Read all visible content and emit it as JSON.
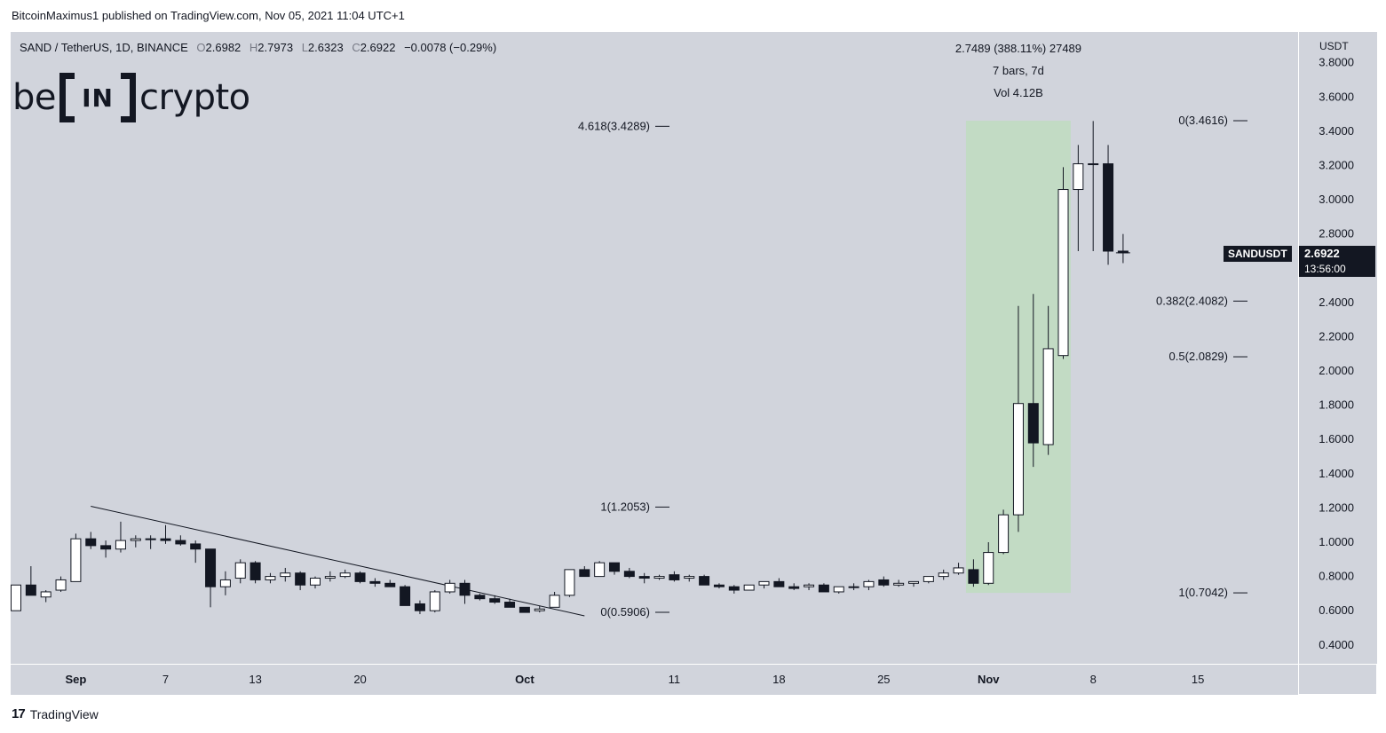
{
  "publisher_line": "BitcoinMaximus1 published on TradingView.com, Nov 05, 2021 11:04 UTC+1",
  "footer": {
    "brand": "TradingView",
    "icon": "tradingview-logo-icon"
  },
  "logo": {
    "left": "be",
    "middle": "IN",
    "right": "crypto"
  },
  "legend": {
    "symbol": "SAND / TetherUS, 1D, BINANCE",
    "o_key": "O",
    "o": "2.6982",
    "h_key": "H",
    "h": "2.7973",
    "l_key": "L",
    "l": "2.6323",
    "c_key": "C",
    "c": "2.6922",
    "change": "−0.0078 (−0.29%)"
  },
  "axis_unit": "USDT",
  "price_tag": {
    "symbol": "SANDUSDT",
    "price": "2.6922",
    "countdown": "13:56:00"
  },
  "measure": {
    "line1": "2.7489 (388.11%) 27489",
    "line2": "7 bars, 7d",
    "line3": "Vol 4.12B"
  },
  "colors": {
    "up": "#ffffff",
    "down": "#131722",
    "background": "#d1d4dc",
    "highlight": "#c2dbc4",
    "line": "#131722"
  },
  "chart_data": {
    "type": "candlestick",
    "y_ticks": [
      "3.8000",
      "3.6000",
      "3.4000",
      "3.2000",
      "3.0000",
      "2.8000",
      "2.4000",
      "2.2000",
      "2.0000",
      "1.8000",
      "1.6000",
      "1.4000",
      "1.2000",
      "1.0000",
      "0.8000",
      "0.6000",
      "0.4000"
    ],
    "ylim": [
      0.29,
      3.98
    ],
    "x_ticks": [
      {
        "label": "Sep",
        "day": 4
      },
      {
        "label": "7",
        "day": 10
      },
      {
        "label": "13",
        "day": 16
      },
      {
        "label": "20",
        "day": 23
      },
      {
        "label": "Oct",
        "day": 34
      },
      {
        "label": "11",
        "day": 44
      },
      {
        "label": "18",
        "day": 51
      },
      {
        "label": "25",
        "day": 58
      },
      {
        "label": "Nov",
        "day": 65
      },
      {
        "label": "8",
        "day": 72
      },
      {
        "label": "15",
        "day": 79
      }
    ],
    "candles": [
      [
        0.6,
        0.75,
        0.6,
        0.75
      ],
      [
        0.75,
        0.86,
        0.69,
        0.69
      ],
      [
        0.68,
        0.72,
        0.65,
        0.71
      ],
      [
        0.72,
        0.8,
        0.71,
        0.78
      ],
      [
        0.77,
        1.05,
        0.77,
        1.02
      ],
      [
        1.02,
        1.06,
        0.96,
        0.98
      ],
      [
        0.98,
        1.01,
        0.91,
        0.96
      ],
      [
        0.96,
        1.12,
        0.94,
        1.01
      ],
      [
        1.01,
        1.04,
        0.97,
        1.02
      ],
      [
        1.02,
        1.04,
        0.96,
        1.02
      ],
      [
        1.02,
        1.1,
        0.99,
        1.01
      ],
      [
        1.01,
        1.04,
        0.98,
        0.99
      ],
      [
        0.99,
        1.01,
        0.88,
        0.96
      ],
      [
        0.96,
        0.96,
        0.62,
        0.74
      ],
      [
        0.74,
        0.83,
        0.69,
        0.78
      ],
      [
        0.79,
        0.9,
        0.76,
        0.88
      ],
      [
        0.88,
        0.89,
        0.76,
        0.78
      ],
      [
        0.78,
        0.82,
        0.76,
        0.8
      ],
      [
        0.8,
        0.85,
        0.77,
        0.82
      ],
      [
        0.82,
        0.83,
        0.72,
        0.75
      ],
      [
        0.75,
        0.8,
        0.73,
        0.79
      ],
      [
        0.79,
        0.83,
        0.77,
        0.8
      ],
      [
        0.8,
        0.84,
        0.79,
        0.82
      ],
      [
        0.82,
        0.83,
        0.76,
        0.77
      ],
      [
        0.77,
        0.79,
        0.74,
        0.76
      ],
      [
        0.76,
        0.78,
        0.74,
        0.74
      ],
      [
        0.74,
        0.75,
        0.63,
        0.63
      ],
      [
        0.64,
        0.66,
        0.58,
        0.6
      ],
      [
        0.6,
        0.72,
        0.59,
        0.71
      ],
      [
        0.71,
        0.78,
        0.7,
        0.76
      ],
      [
        0.76,
        0.78,
        0.64,
        0.69
      ],
      [
        0.69,
        0.7,
        0.66,
        0.67
      ],
      [
        0.67,
        0.69,
        0.64,
        0.65
      ],
      [
        0.65,
        0.67,
        0.62,
        0.62
      ],
      [
        0.62,
        0.62,
        0.59,
        0.59
      ],
      [
        0.6,
        0.63,
        0.59,
        0.61
      ],
      [
        0.62,
        0.71,
        0.62,
        0.69
      ],
      [
        0.69,
        0.84,
        0.68,
        0.84
      ],
      [
        0.84,
        0.86,
        0.8,
        0.8
      ],
      [
        0.8,
        0.89,
        0.8,
        0.88
      ],
      [
        0.88,
        0.88,
        0.81,
        0.83
      ],
      [
        0.83,
        0.85,
        0.79,
        0.8
      ],
      [
        0.8,
        0.82,
        0.76,
        0.79
      ],
      [
        0.79,
        0.81,
        0.78,
        0.8
      ],
      [
        0.81,
        0.83,
        0.77,
        0.78
      ],
      [
        0.79,
        0.81,
        0.77,
        0.8
      ],
      [
        0.8,
        0.81,
        0.75,
        0.75
      ],
      [
        0.75,
        0.76,
        0.73,
        0.74
      ],
      [
        0.74,
        0.75,
        0.7,
        0.72
      ],
      [
        0.72,
        0.75,
        0.72,
        0.75
      ],
      [
        0.75,
        0.77,
        0.73,
        0.77
      ],
      [
        0.77,
        0.79,
        0.74,
        0.74
      ],
      [
        0.74,
        0.76,
        0.72,
        0.73
      ],
      [
        0.74,
        0.76,
        0.72,
        0.75
      ],
      [
        0.75,
        0.76,
        0.73,
        0.71
      ],
      [
        0.71,
        0.74,
        0.7,
        0.74
      ],
      [
        0.74,
        0.76,
        0.72,
        0.74
      ],
      [
        0.74,
        0.78,
        0.72,
        0.77
      ],
      [
        0.78,
        0.8,
        0.74,
        0.75
      ],
      [
        0.75,
        0.78,
        0.74,
        0.76
      ],
      [
        0.76,
        0.77,
        0.74,
        0.77
      ],
      [
        0.77,
        0.8,
        0.76,
        0.8
      ],
      [
        0.8,
        0.84,
        0.78,
        0.82
      ],
      [
        0.82,
        0.88,
        0.81,
        0.85
      ],
      [
        0.84,
        0.9,
        0.74,
        0.76
      ],
      [
        0.76,
        1.0,
        0.75,
        0.94
      ],
      [
        0.94,
        1.19,
        0.93,
        1.16
      ],
      [
        1.16,
        2.38,
        1.06,
        1.81
      ],
      [
        1.81,
        2.45,
        1.44,
        1.58
      ],
      [
        1.57,
        2.38,
        1.51,
        2.13
      ],
      [
        2.09,
        3.19,
        2.07,
        3.06
      ],
      [
        3.06,
        3.32,
        2.7,
        3.21
      ],
      [
        3.21,
        3.46,
        2.7,
        3.21
      ],
      [
        3.21,
        3.32,
        2.62,
        2.7
      ],
      [
        2.7,
        2.8,
        2.63,
        2.69
      ]
    ],
    "fib_left": [
      {
        "label": "4.618(3.4289)",
        "value": 3.4289
      },
      {
        "label": "1(1.2053)",
        "value": 1.2053
      },
      {
        "label": "0(0.5906)",
        "value": 0.5906
      }
    ],
    "fib_right": [
      {
        "label": "0(3.4616)",
        "value": 3.4616
      },
      {
        "label": "0.382(2.4082)",
        "value": 2.4082
      },
      {
        "label": "0.5(2.0829)",
        "value": 2.0829
      },
      {
        "label": "1(0.7042)",
        "value": 0.7042
      }
    ],
    "trendline": {
      "from": {
        "day": 5,
        "value": 1.21
      },
      "to": {
        "day": 38,
        "value": 0.57
      }
    },
    "highlight_range": {
      "from_day": 63.5,
      "to_day": 70.5,
      "low": 0.7042,
      "high": 3.4616
    }
  }
}
